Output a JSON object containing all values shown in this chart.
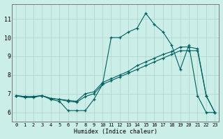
{
  "xlabel": "Humidex (Indice chaleur)",
  "bg_color": "#cceee8",
  "grid_color": "#aad4cc",
  "line_color": "#006060",
  "xlim": [
    -0.5,
    23.5
  ],
  "ylim": [
    5.5,
    11.8
  ],
  "yticks": [
    6,
    7,
    8,
    9,
    10,
    11
  ],
  "xticks": [
    0,
    1,
    2,
    3,
    4,
    5,
    6,
    7,
    8,
    9,
    10,
    11,
    12,
    13,
    14,
    15,
    16,
    17,
    18,
    19,
    20,
    21,
    22,
    23
  ],
  "line1_x": [
    0,
    1,
    2,
    3,
    4,
    5,
    6,
    7,
    8,
    9,
    10,
    11,
    12,
    13,
    14,
    15,
    16,
    17,
    18,
    19,
    20,
    21,
    22,
    23
  ],
  "line1_y": [
    6.9,
    6.8,
    6.8,
    6.9,
    6.7,
    6.6,
    6.1,
    6.1,
    6.1,
    6.7,
    7.5,
    10.0,
    10.0,
    10.3,
    10.5,
    11.3,
    10.7,
    10.3,
    9.6,
    8.3,
    9.6,
    6.9,
    6.0,
    6.0
  ],
  "line2_x": [
    0,
    1,
    2,
    3,
    4,
    5,
    6,
    7,
    8,
    9,
    10,
    11,
    12,
    13,
    14,
    15,
    16,
    17,
    18,
    19,
    20,
    21,
    22,
    23
  ],
  "line2_y": [
    6.9,
    6.85,
    6.85,
    6.9,
    6.75,
    6.7,
    6.65,
    6.6,
    7.0,
    7.1,
    7.6,
    7.8,
    8.0,
    8.2,
    8.5,
    8.7,
    8.9,
    9.1,
    9.25,
    9.5,
    9.5,
    9.4,
    6.9,
    6.0
  ],
  "line3_x": [
    0,
    1,
    2,
    3,
    4,
    5,
    6,
    7,
    8,
    9,
    10,
    11,
    12,
    13,
    14,
    15,
    16,
    17,
    18,
    19,
    20,
    21,
    22,
    23
  ],
  "line3_y": [
    6.9,
    6.85,
    6.85,
    6.9,
    6.75,
    6.7,
    6.6,
    6.55,
    6.85,
    7.0,
    7.5,
    7.7,
    7.9,
    8.1,
    8.3,
    8.5,
    8.7,
    8.9,
    9.1,
    9.3,
    9.3,
    9.3,
    6.9,
    6.0
  ]
}
